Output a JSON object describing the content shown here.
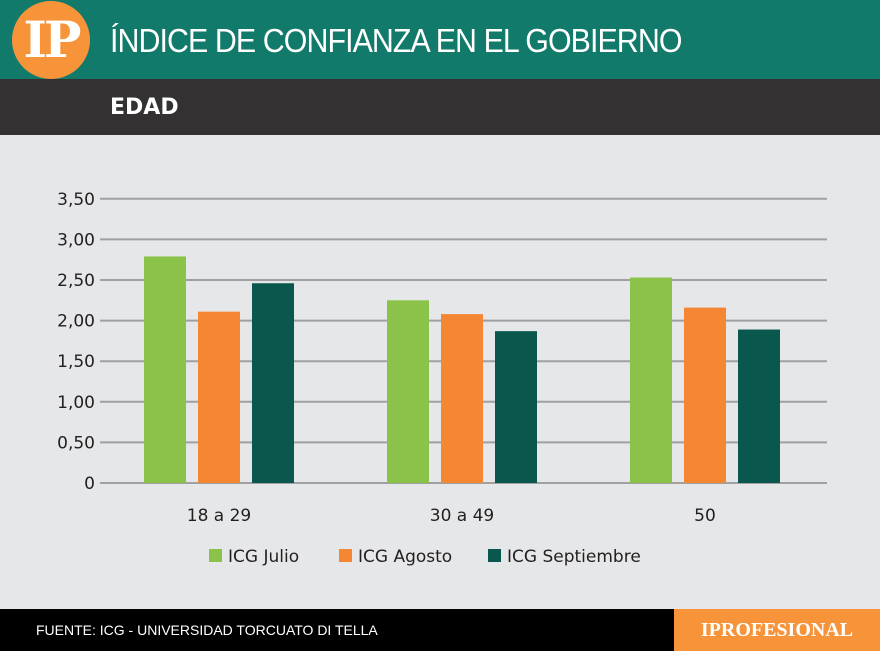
{
  "header": {
    "logo": "IP",
    "title": "ÍNDICE DE CONFIANZA EN EL GOBIERNO",
    "subtitle": "EDAD"
  },
  "footer": {
    "source": "FUENTE: ICG - UNIVERSIDAD TORCUATO DI TELLA",
    "brand": "IPROFESIONAL"
  },
  "colors": {
    "header": "#127a6b",
    "subheader": "#333132",
    "accent": "#f7943a"
  },
  "chart_data": {
    "type": "bar",
    "title": "",
    "xlabel": "",
    "ylabel": "",
    "ylim": [
      0,
      3.5
    ],
    "grid": true,
    "legend": "bottom",
    "yticks": [
      "0",
      "0,50",
      "1,00",
      "1,50",
      "2,00",
      "2,50",
      "3,00",
      "3,50"
    ],
    "categories": [
      "18 a 29",
      "30 a 49",
      "50"
    ],
    "series": [
      {
        "name": "ICG Julio",
        "color": "#8bc34a",
        "values": [
          2.79,
          2.25,
          2.53
        ]
      },
      {
        "name": "ICG Agosto",
        "color": "#f58634",
        "values": [
          2.11,
          2.08,
          2.16
        ]
      },
      {
        "name": "ICG Septiembre",
        "color": "#0a584d",
        "values": [
          2.46,
          1.87,
          1.89
        ]
      }
    ]
  }
}
